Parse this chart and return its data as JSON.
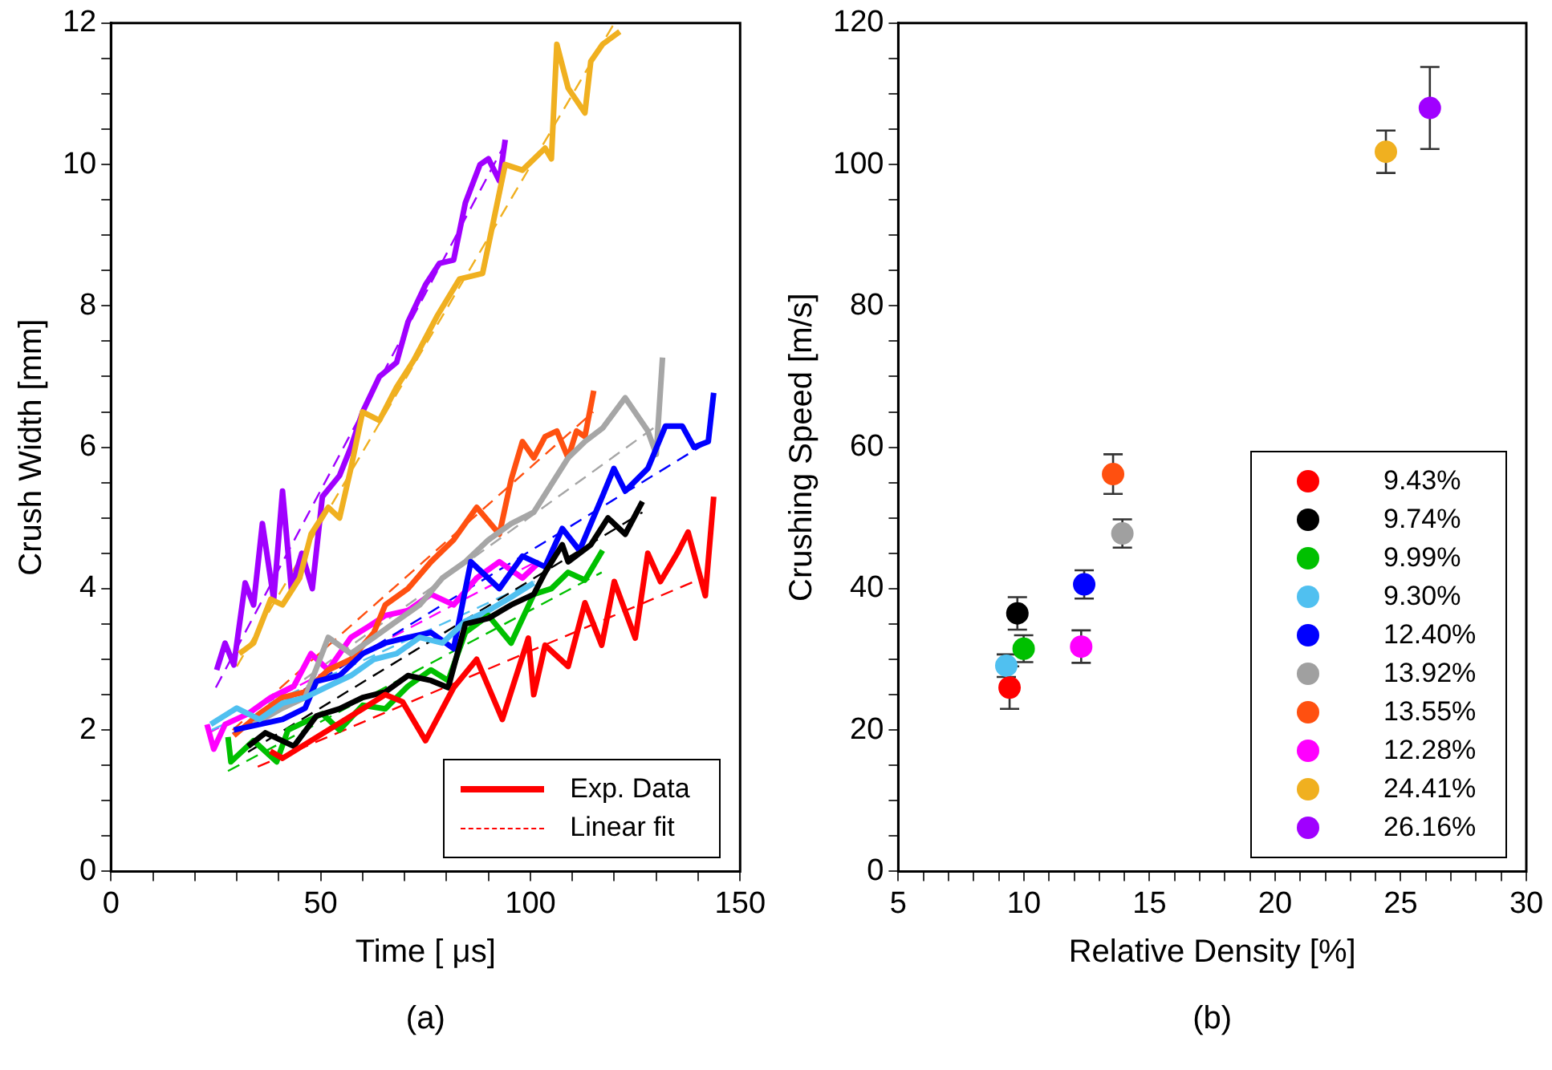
{
  "chart_data": [
    {
      "type": "line",
      "xlabel": "Time [ μs]",
      "ylabel": "Crush Width [mm]",
      "xlim": [
        0,
        150
      ],
      "ylim": [
        0,
        12
      ],
      "xticks": [
        0,
        {
          "value": 10,
          "label": null
        },
        {
          "value": 20,
          "label": null
        },
        {
          "value": 30,
          "label": null
        },
        {
          "value": 40,
          "label": null
        },
        50,
        {
          "value": 60,
          "label": null
        },
        {
          "value": 70,
          "label": null
        },
        {
          "value": 80,
          "label": null
        },
        {
          "value": 90,
          "label": null
        },
        100,
        {
          "value": 110,
          "label": null
        },
        {
          "value": 120,
          "label": null
        },
        {
          "value": 130,
          "label": null
        },
        {
          "value": 140,
          "label": null
        },
        150
      ],
      "yticks": [
        0,
        {
          "value": 0.5,
          "label": null
        },
        {
          "value": 1,
          "label": null
        },
        {
          "value": 1.5,
          "label": null
        },
        2,
        {
          "value": 2.5,
          "label": null
        },
        {
          "value": 3,
          "label": null
        },
        {
          "value": 3.5,
          "label": null
        },
        4,
        {
          "value": 4.5,
          "label": null
        },
        {
          "value": 5,
          "label": null
        },
        {
          "value": 5.5,
          "label": null
        },
        6,
        {
          "value": 6.5,
          "label": null
        },
        {
          "value": 7,
          "label": null
        },
        {
          "value": 7.5,
          "label": null
        },
        8,
        {
          "value": 8.5,
          "label": null
        },
        {
          "value": 9,
          "label": null
        },
        {
          "value": 9.5,
          "label": null
        },
        10,
        {
          "value": 10.5,
          "label": null
        },
        {
          "value": 11,
          "label": null
        },
        {
          "value": 11.5,
          "label": null
        },
        12
      ],
      "grid": false,
      "legend": "bottom right",
      "marker": "none",
      "annotations": [
        "(a)"
      ],
      "series": [
        {
          "name": "Exp. Data",
          "color": "#ff0000",
          "line_style": "solid",
          "x": [
            38,
            40.9,
            60,
            65.4,
            69.5,
            75,
            81.7,
            87.2,
            93.3,
            99.5,
            100.8,
            103.5,
            109,
            113,
            117,
            120,
            125,
            128,
            131,
            135,
            137.6,
            141.7,
            143.7
          ],
          "values": [
            1.7,
            1.6,
            2.3,
            2.5,
            2.4,
            1.85,
            2.6,
            3.0,
            2.15,
            3.3,
            2.5,
            3.2,
            2.9,
            3.8,
            3.2,
            4.1,
            3.3,
            4.5,
            4.1,
            4.5,
            4.8,
            3.9,
            5.3
          ]
        },
        {
          "color": "#000000",
          "line_style": "solid",
          "x": [
            32.7,
            36.8,
            43.6,
            49,
            54.5,
            60,
            65.4,
            70.8,
            76.3,
            80.4,
            84.5,
            90,
            95.4,
            100.8,
            103.5,
            107.6,
            109,
            114.4,
            118.5,
            122.6,
            126.7
          ],
          "values": [
            1.77,
            1.96,
            1.77,
            2.2,
            2.3,
            2.46,
            2.54,
            2.77,
            2.7,
            2.6,
            3.5,
            3.58,
            3.77,
            3.92,
            4.23,
            4.62,
            4.38,
            4.62,
            5.0,
            4.77,
            5.23
          ]
        },
        {
          "color": "#00c000",
          "line_style": "solid",
          "x": [
            27.9,
            28.6,
            34,
            39.5,
            42.2,
            45,
            50.4,
            54.5,
            60,
            65.4,
            70.8,
            76.3,
            80.4,
            84.5,
            90,
            95.4,
            100.8,
            105,
            109,
            113,
            117.2
          ],
          "values": [
            1.9,
            1.55,
            1.85,
            1.55,
            2.0,
            2.08,
            2.23,
            2.0,
            2.35,
            2.3,
            2.62,
            2.85,
            2.7,
            3.38,
            3.62,
            3.23,
            3.92,
            4.0,
            4.23,
            4.12,
            4.54
          ]
        },
        {
          "color": "#50c0f0",
          "line_style": "solid",
          "x": [
            23.8,
            30,
            35.4,
            40.9,
            46.3,
            51.8,
            57.2,
            62.7,
            68.1,
            73.6,
            79,
            84.5,
            90,
            95.4,
            100.8
          ],
          "values": [
            2.08,
            2.31,
            2.15,
            2.38,
            2.46,
            2.62,
            2.77,
            3.0,
            3.08,
            3.31,
            3.23,
            3.54,
            3.69,
            3.88,
            4.08
          ]
        },
        {
          "color": "#0000ff",
          "line_style": "solid",
          "x": [
            29.3,
            35.4,
            40.9,
            46.3,
            49,
            54.5,
            60,
            65.4,
            70.8,
            76.3,
            81.7,
            85.8,
            92.6,
            98.1,
            103.5,
            107.6,
            111.7,
            117.2,
            119.9,
            122.6,
            128,
            132.2,
            136.2,
            139,
            142.4,
            143.7
          ],
          "values": [
            2.0,
            2.08,
            2.15,
            2.31,
            2.69,
            2.77,
            3.08,
            3.23,
            3.31,
            3.38,
            3.15,
            4.38,
            4.0,
            4.46,
            4.31,
            4.85,
            4.54,
            5.31,
            5.7,
            5.38,
            5.7,
            6.3,
            6.3,
            6.0,
            6.08,
            6.77
          ]
        },
        {
          "color": "#a6a6a6",
          "line_style": "solid",
          "x": [
            34,
            40.9,
            46.3,
            51.8,
            57.2,
            62.7,
            68.1,
            73.6,
            79,
            84.5,
            90,
            95.4,
            100.8,
            109,
            113,
            117.2,
            122.6,
            128,
            130,
            131.5
          ],
          "values": [
            2.08,
            2.31,
            2.46,
            3.31,
            3.08,
            3.31,
            3.54,
            3.77,
            4.15,
            4.38,
            4.69,
            4.92,
            5.08,
            5.85,
            6.08,
            6.27,
            6.7,
            6.23,
            5.9,
            7.27
          ]
        },
        {
          "color": "#ff5010",
          "line_style": "solid",
          "x": [
            29.3,
            35.4,
            40.9,
            46.3,
            51.8,
            57.2,
            62.7,
            65.4,
            70.8,
            76.3,
            81.7,
            87.2,
            92.6,
            95.4,
            98.1,
            100.8,
            103.5,
            106.3,
            109,
            111,
            113,
            115.1
          ],
          "values": [
            1.92,
            2.23,
            2.46,
            2.54,
            2.85,
            3.0,
            3.38,
            3.77,
            4.0,
            4.38,
            4.69,
            5.15,
            4.77,
            5.54,
            6.08,
            5.85,
            6.15,
            6.23,
            5.85,
            6.23,
            6.15,
            6.8
          ]
        },
        {
          "color": "#ff00ff",
          "line_style": "solid",
          "x": [
            22.9,
            24.5,
            27.2,
            32.7,
            38.1,
            43.6,
            47.7,
            51.8,
            57.2,
            61.3,
            65.4,
            70.8,
            76.3,
            81.7,
            87.2,
            92.6,
            98.1,
            102.2
          ],
          "values": [
            2.08,
            1.73,
            2.08,
            2.23,
            2.46,
            2.62,
            3.08,
            2.85,
            3.31,
            3.46,
            3.62,
            3.69,
            3.92,
            3.77,
            4.15,
            4.38,
            4.15,
            4.38
          ]
        },
        {
          "color": "#f0b020",
          "line_style": "solid",
          "x": [
            30.6,
            34,
            38.1,
            40.9,
            45,
            47.7,
            51.8,
            54.5,
            57.2,
            60,
            64,
            68.1,
            72.2,
            77.7,
            83.1,
            88.6,
            91.3,
            94,
            98.1,
            103.5,
            105,
            106.3,
            109,
            113,
            114.4,
            117.2,
            121.3
          ],
          "values": [
            3.08,
            3.23,
            3.85,
            3.77,
            4.15,
            4.77,
            5.15,
            5.0,
            5.7,
            6.5,
            6.38,
            6.85,
            7.23,
            7.85,
            8.38,
            8.46,
            9.23,
            10.0,
            9.92,
            10.23,
            10.08,
            11.7,
            11.08,
            10.73,
            11.46,
            11.7,
            11.88
          ]
        },
        {
          "color": "#a000ff",
          "line_style": "solid",
          "x": [
            25.2,
            27.2,
            29.3,
            32,
            34,
            36.1,
            38.8,
            40.9,
            43,
            45.5,
            48,
            50.4,
            54.5,
            57.2,
            60,
            64,
            68.1,
            70.8,
            75,
            78.3,
            81.7,
            84.5,
            88,
            90,
            92.6,
            94
          ],
          "values": [
            2.85,
            3.23,
            2.92,
            4.08,
            3.77,
            4.92,
            3.85,
            5.38,
            4.0,
            4.5,
            4.0,
            5.3,
            5.6,
            6.0,
            6.5,
            7.0,
            7.2,
            7.77,
            8.3,
            8.6,
            8.65,
            9.46,
            10.0,
            10.08,
            9.77,
            10.35
          ]
        },
        {
          "name": "Linear fit",
          "color": "#ff0000",
          "line_style": "dashed",
          "x": [
            35,
            141
          ],
          "values": [
            1.48,
            4.15
          ]
        },
        {
          "color": "#000000",
          "line_style": "dashed",
          "x": [
            32.7,
            126.7
          ],
          "values": [
            1.69,
            5.08
          ]
        },
        {
          "color": "#00c000",
          "line_style": "dashed",
          "x": [
            27.9,
            117
          ],
          "values": [
            1.42,
            4.23
          ]
        },
        {
          "color": "#50c0f0",
          "line_style": "dashed",
          "x": [
            24,
            101
          ],
          "values": [
            2.0,
            4.1
          ]
        },
        {
          "color": "#0000ff",
          "line_style": "dashed",
          "x": [
            29,
            143
          ],
          "values": [
            1.95,
            6.1
          ]
        },
        {
          "color": "#a6a6a6",
          "line_style": "dashed",
          "x": [
            34,
            130
          ],
          "values": [
            2.2,
            6.3
          ]
        },
        {
          "color": "#ff5010",
          "line_style": "dashed",
          "x": [
            29,
            115
          ],
          "values": [
            2.0,
            6.5
          ]
        },
        {
          "color": "#ff00ff",
          "line_style": "dashed",
          "x": [
            23,
            102
          ],
          "values": [
            1.95,
            4.4
          ]
        },
        {
          "color": "#f0b020",
          "line_style": "dashed",
          "x": [
            30,
            120
          ],
          "values": [
            2.9,
            12
          ]
        },
        {
          "color": "#a000ff",
          "line_style": "dashed",
          "x": [
            25,
            94
          ],
          "values": [
            2.6,
            10.3
          ]
        }
      ]
    },
    {
      "type": "scatter",
      "xlabel": "Relative Density [%]",
      "ylabel": "Crushing Speed [m/s]",
      "xlim": [
        5,
        30
      ],
      "ylim": [
        0,
        120
      ],
      "xticks": [
        5,
        {
          "value": 6,
          "label": null
        },
        {
          "value": 7,
          "label": null
        },
        {
          "value": 8,
          "label": null
        },
        {
          "value": 9,
          "label": null
        },
        10,
        {
          "value": 11,
          "label": null
        },
        {
          "value": 12,
          "label": null
        },
        {
          "value": 13,
          "label": null
        },
        {
          "value": 14,
          "label": null
        },
        15,
        {
          "value": 16,
          "label": null
        },
        {
          "value": 17,
          "label": null
        },
        {
          "value": 18,
          "label": null
        },
        {
          "value": 19,
          "label": null
        },
        20,
        {
          "value": 21,
          "label": null
        },
        {
          "value": 22,
          "label": null
        },
        {
          "value": 23,
          "label": null
        },
        {
          "value": 24,
          "label": null
        },
        25,
        {
          "value": 26,
          "label": null
        },
        {
          "value": 27,
          "label": null
        },
        {
          "value": 28,
          "label": null
        },
        {
          "value": 29,
          "label": null
        },
        30
      ],
      "yticks": [
        0,
        {
          "value": 5,
          "label": null
        },
        {
          "value": 10,
          "label": null
        },
        {
          "value": 15,
          "label": null
        },
        20,
        {
          "value": 25,
          "label": null
        },
        {
          "value": 30,
          "label": null
        },
        {
          "value": 35,
          "label": null
        },
        40,
        {
          "value": 45,
          "label": null
        },
        {
          "value": 50,
          "label": null
        },
        {
          "value": 55,
          "label": null
        },
        60,
        {
          "value": 65,
          "label": null
        },
        {
          "value": 70,
          "label": null
        },
        {
          "value": 75,
          "label": null
        },
        80,
        {
          "value": 85,
          "label": null
        },
        {
          "value": 90,
          "label": null
        },
        {
          "value": 95,
          "label": null
        },
        100,
        {
          "value": 105,
          "label": null
        },
        {
          "value": 110,
          "label": null
        },
        {
          "value": 115,
          "label": null
        },
        120
      ],
      "grid": false,
      "legend": "bottom right",
      "marker": "circle",
      "annotations": [
        "(b)"
      ],
      "series": [
        {
          "name": "9.43%",
          "color": "#ff0000",
          "x": [
            9.43
          ],
          "values": [
            26
          ],
          "errors": [
            3
          ]
        },
        {
          "name": "9.74%",
          "color": "#000000",
          "x": [
            9.74
          ],
          "values": [
            36.5
          ],
          "errors": [
            2.3
          ]
        },
        {
          "name": "9.99%",
          "color": "#00c000",
          "x": [
            9.99
          ],
          "values": [
            31.5
          ],
          "errors": [
            1.9
          ]
        },
        {
          "name": "9.30%",
          "color": "#50c0f0",
          "x": [
            9.3
          ],
          "values": [
            29.1
          ],
          "errors": [
            1.6
          ]
        },
        {
          "name": "12.40%",
          "color": "#0000ff",
          "x": [
            12.4
          ],
          "values": [
            40.6
          ],
          "errors": [
            2
          ]
        },
        {
          "name": "13.92%",
          "color": "#a0a0a0",
          "x": [
            13.92
          ],
          "values": [
            47.8
          ],
          "errors": [
            2
          ]
        },
        {
          "name": "13.55%",
          "color": "#ff5010",
          "x": [
            13.55
          ],
          "values": [
            56.2
          ],
          "errors": [
            2.8
          ]
        },
        {
          "name": "12.28%",
          "color": "#ff00ff",
          "x": [
            12.28
          ],
          "values": [
            31.8
          ],
          "errors": [
            2.3
          ]
        },
        {
          "name": "24.41%",
          "color": "#f0b020",
          "x": [
            24.41
          ],
          "values": [
            101.8
          ],
          "errors": [
            3
          ]
        },
        {
          "name": "26.16%",
          "color": "#a000ff",
          "x": [
            26.16
          ],
          "values": [
            108
          ],
          "errors": [
            5.8
          ]
        }
      ]
    }
  ]
}
